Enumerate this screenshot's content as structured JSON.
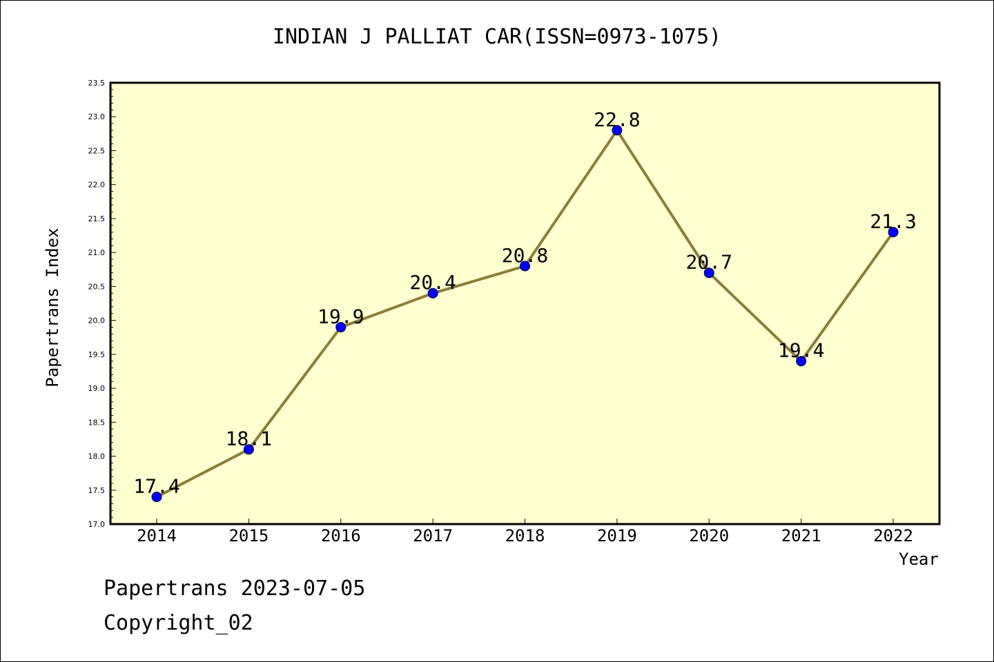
{
  "chart_data": {
    "type": "line",
    "title": "INDIAN J PALLIAT CAR(ISSN=0973-1075)",
    "xlabel": "Year",
    "ylabel": "Papertrans Index",
    "categories": [
      "2014",
      "2015",
      "2016",
      "2017",
      "2018",
      "2019",
      "2020",
      "2021",
      "2022"
    ],
    "series": [
      {
        "values": [
          17.4,
          18.1,
          19.9,
          20.4,
          20.8,
          22.8,
          20.7,
          19.4,
          21.3
        ]
      }
    ],
    "data_labels": [
      "17.4",
      "18.1",
      "19.9",
      "20.4",
      "20.8",
      "22.8",
      "20.7",
      "19.4",
      "21.3"
    ],
    "ylim": [
      17.0,
      23.5
    ],
    "yticks": [
      "17.0",
      "17.5",
      "18.0",
      "18.5",
      "19.0",
      "19.5",
      "20.0",
      "20.5",
      "21.0",
      "21.5",
      "22.0",
      "22.5",
      "23.0",
      "23.5"
    ],
    "grid": false,
    "colors": {
      "line": "#8b7d3a",
      "marker": "#0000ff",
      "plot_background": "#ffffd0"
    }
  },
  "footer": {
    "line1": "Papertrans 2023-07-05",
    "line2": "Copyright_02"
  }
}
